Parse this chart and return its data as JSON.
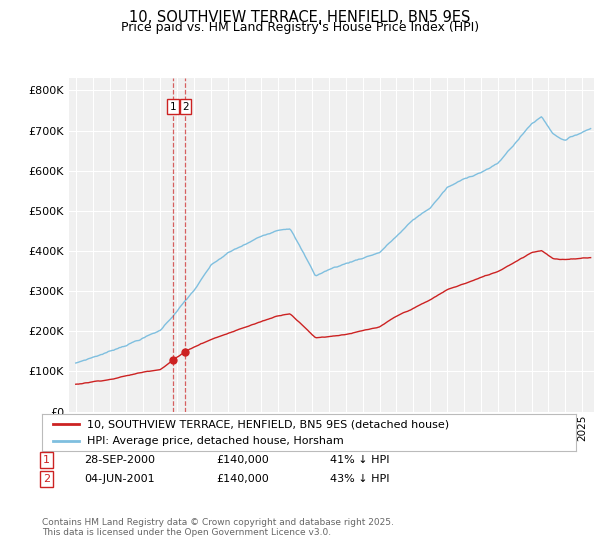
{
  "title": "10, SOUTHVIEW TERRACE, HENFIELD, BN5 9ES",
  "subtitle": "Price paid vs. HM Land Registry's House Price Index (HPI)",
  "ylim": [
    0,
    830000
  ],
  "yticks": [
    0,
    100000,
    200000,
    300000,
    400000,
    500000,
    600000,
    700000,
    800000
  ],
  "ytick_labels": [
    "£0",
    "£100K",
    "£200K",
    "£300K",
    "£400K",
    "£500K",
    "£600K",
    "£700K",
    "£800K"
  ],
  "hpi_color": "#7fbfdf",
  "price_color": "#cc2222",
  "vline_color": "#cc2222",
  "background_color": "#f0f0f0",
  "grid_color": "#ffffff",
  "legend_label_price": "10, SOUTHVIEW TERRACE, HENFIELD, BN5 9ES (detached house)",
  "legend_label_hpi": "HPI: Average price, detached house, Horsham",
  "transaction1_label": "1",
  "transaction1_date": "28-SEP-2000",
  "transaction1_price": "£140,000",
  "transaction1_hpi": "41% ↓ HPI",
  "transaction2_label": "2",
  "transaction2_date": "04-JUN-2001",
  "transaction2_price": "£140,000",
  "transaction2_hpi": "43% ↓ HPI",
  "footnote": "Contains HM Land Registry data © Crown copyright and database right 2025.\nThis data is licensed under the Open Government Licence v3.0.",
  "title_fontsize": 10.5,
  "subtitle_fontsize": 9,
  "tick_fontsize": 8,
  "legend_fontsize": 8,
  "table_fontsize": 8,
  "footnote_fontsize": 6.5
}
